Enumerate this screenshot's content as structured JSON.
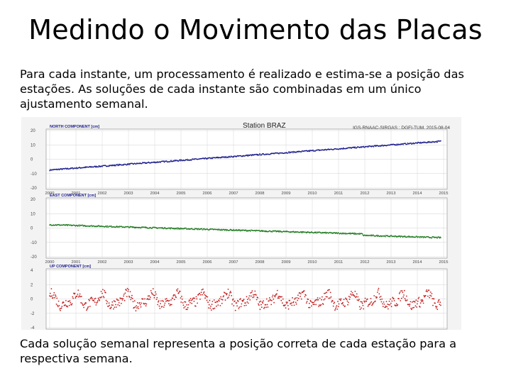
{
  "slide": {
    "title": "Medindo o Movimento das Placas",
    "paragraph1": "Para cada instante, um processamento é realizado e estima-se a posição das estações. As soluções de cada instante são combinadas em um único ajustamento semanal.",
    "paragraph2": "Cada solução semanal representa a posição correta de cada estação para a respectiva semana."
  },
  "figure": {
    "station_title": "Station BRAZ",
    "credit": "IGS-RNAAC-SIRGAS : DGFI-TUM, 2015-08-04",
    "years": [
      "2000",
      "2001",
      "2002",
      "2003",
      "2004",
      "2005",
      "2006",
      "2007",
      "2008",
      "2009",
      "2010",
      "2011",
      "2012",
      "2013",
      "2014",
      "2015"
    ],
    "panels": [
      {
        "label": "NORTH COMPONENT [cm]",
        "color": "#1a1a8c",
        "yticks": [
          "20",
          "10",
          "0",
          "-10",
          "-20"
        ],
        "ylim": [
          -20,
          20
        ]
      },
      {
        "label": "EAST COMPONENT [cm]",
        "color": "#1e7a1e",
        "yticks": [
          "20",
          "10",
          "0",
          "-10",
          "-20"
        ],
        "ylim": [
          -20,
          20
        ]
      },
      {
        "label": "UP COMPONENT [cm]",
        "color": "#c41e1e",
        "yticks": [
          "4",
          "2",
          "0",
          "-2",
          "-4"
        ],
        "ylim": [
          -4,
          4
        ]
      }
    ]
  }
}
